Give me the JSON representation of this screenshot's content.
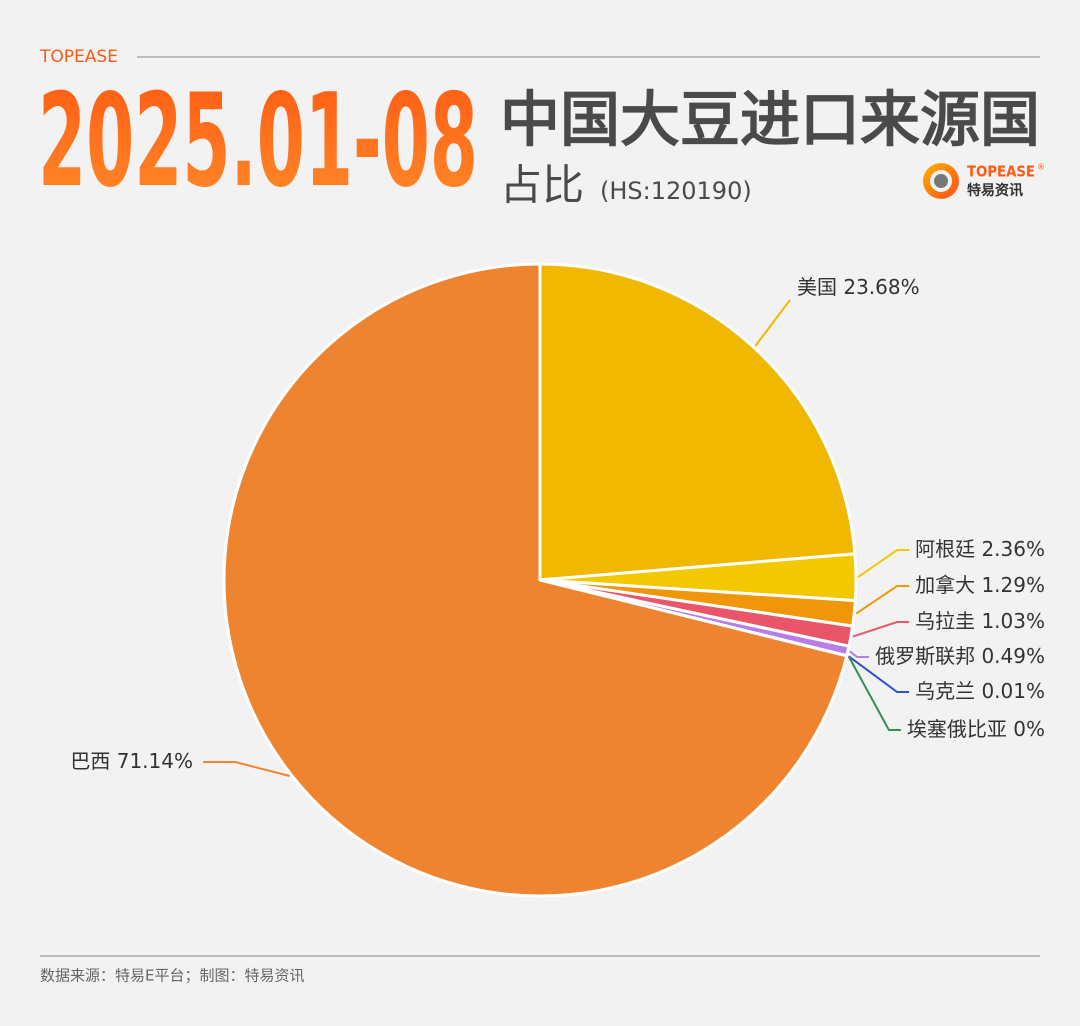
{
  "brand": "TOPEASE",
  "logo": {
    "brand": "TOPEASE",
    "mark": "®",
    "name": "特易资讯"
  },
  "footer": "数据来源：特易E平台；制图：特易资讯",
  "chart_data": {
    "type": "pie",
    "title_date": "2025.01-08",
    "title": "中国大豆进口来源国",
    "subtitle": "占比",
    "subtitle_note": "(HS:120190)",
    "categories": [
      "美国",
      "阿根廷",
      "加拿大",
      "乌拉圭",
      "俄罗斯联邦",
      "乌克兰",
      "埃塞俄比亚",
      "巴西"
    ],
    "values": [
      23.68,
      2.36,
      1.29,
      1.03,
      0.49,
      0.01,
      0,
      71.14
    ],
    "value_labels": [
      "23.68%",
      "2.36%",
      "1.29%",
      "1.03%",
      "0.49%",
      "0.01%",
      "0%",
      "71.14%"
    ],
    "colors": [
      "#f0b800",
      "#f2c800",
      "#f0960a",
      "#e9566a",
      "#b57ee8",
      "#2f52c8",
      "#3b8a5a",
      "#ef8430"
    ]
  }
}
